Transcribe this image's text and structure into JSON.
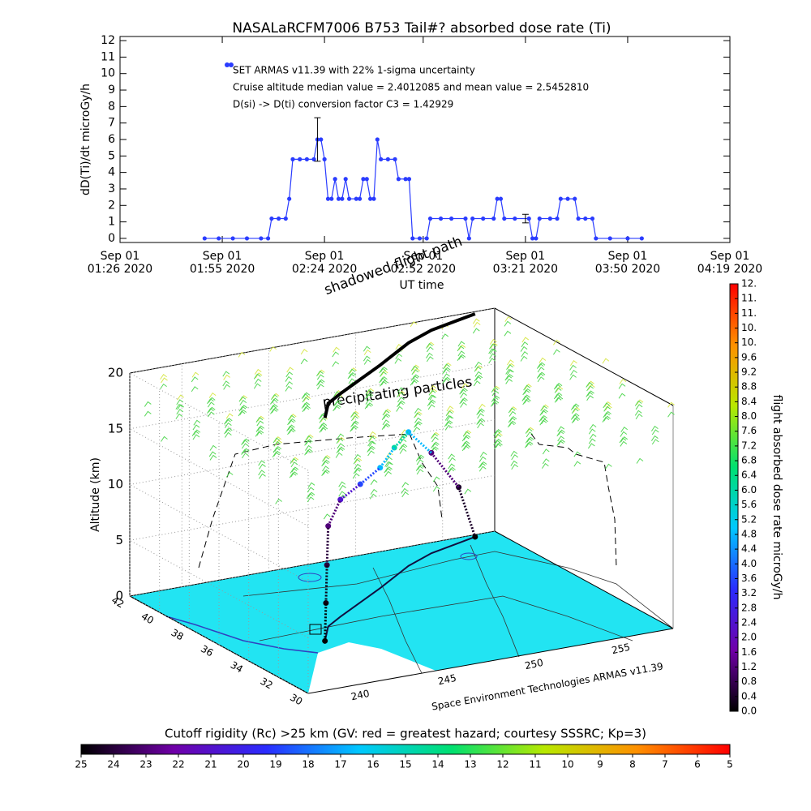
{
  "chart_data": [
    {
      "type": "line",
      "title": "NASALaRCFM7006  B753 Tail#? absorbed dose rate (Ti)",
      "x_label": "UT time",
      "y_label": "dD(Ti)/dt microGy/h",
      "x": [
        "2020-09-01 01:50",
        "2020-09-01 01:54",
        "2020-09-01 01:58",
        "2020-09-01 02:02",
        "2020-09-01 02:06",
        "2020-09-01 02:08",
        "2020-09-01 02:09",
        "2020-09-01 02:11",
        "2020-09-01 02:13",
        "2020-09-01 02:14",
        "2020-09-01 02:15",
        "2020-09-01 02:17",
        "2020-09-01 02:19",
        "2020-09-01 02:21",
        "2020-09-01 02:22",
        "2020-09-01 02:23",
        "2020-09-01 02:24",
        "2020-09-01 02:25",
        "2020-09-01 02:26",
        "2020-09-01 02:27",
        "2020-09-01 02:28",
        "2020-09-01 02:29",
        "2020-09-01 02:30",
        "2020-09-01 02:31",
        "2020-09-01 02:33",
        "2020-09-01 02:34",
        "2020-09-01 02:35",
        "2020-09-01 02:36",
        "2020-09-01 02:37",
        "2020-09-01 02:38",
        "2020-09-01 02:39",
        "2020-09-01 02:40",
        "2020-09-01 02:42",
        "2020-09-01 02:44",
        "2020-09-01 02:45",
        "2020-09-01 02:47",
        "2020-09-01 02:48",
        "2020-09-01 02:49",
        "2020-09-01 02:51",
        "2020-09-01 02:53",
        "2020-09-01 02:54",
        "2020-09-01 02:57",
        "2020-09-01 03:00",
        "2020-09-01 03:04",
        "2020-09-01 03:05",
        "2020-09-01 03:06",
        "2020-09-01 03:09",
        "2020-09-01 03:12",
        "2020-09-01 03:13",
        "2020-09-01 03:14",
        "2020-09-01 03:15",
        "2020-09-01 03:18",
        "2020-09-01 03:22",
        "2020-09-01 03:23",
        "2020-09-01 03:24",
        "2020-09-01 03:25",
        "2020-09-01 03:28",
        "2020-09-01 03:30",
        "2020-09-01 03:31",
        "2020-09-01 03:33",
        "2020-09-01 03:35",
        "2020-09-01 03:36",
        "2020-09-01 03:38",
        "2020-09-01 03:40",
        "2020-09-01 03:41",
        "2020-09-01 03:45",
        "2020-09-01 03:50",
        "2020-09-01 03:54"
      ],
      "series": [
        {
          "name": "SET ARMAS v11.39 with 22% 1-sigma uncertainty",
          "color": "#2a3cff",
          "values": [
            0,
            0,
            0,
            0,
            0,
            0,
            1.2,
            1.2,
            1.2,
            2.4,
            4.8,
            4.8,
            4.8,
            4.8,
            6.0,
            6.0,
            4.8,
            2.4,
            2.4,
            3.6,
            2.4,
            2.4,
            3.6,
            2.4,
            2.4,
            2.4,
            3.6,
            3.6,
            2.4,
            2.4,
            6.0,
            4.8,
            4.8,
            4.8,
            3.6,
            3.6,
            3.6,
            0,
            0,
            0,
            1.2,
            1.2,
            1.2,
            1.2,
            0,
            1.2,
            1.2,
            1.2,
            2.4,
            2.4,
            1.2,
            1.2,
            1.2,
            0,
            0,
            1.2,
            1.2,
            1.2,
            2.4,
            2.4,
            2.4,
            1.2,
            1.2,
            1.2,
            0,
            0,
            0,
            0
          ]
        }
      ],
      "error_bars": [
        {
          "x": "2020-09-01 02:22",
          "value": 6.0,
          "error": 1.32
        },
        {
          "x": "2020-09-01 03:21",
          "value": 1.2,
          "error": 0.26
        }
      ],
      "annotations": [
        "Cruise altitude median value = 2.4012085 and mean value = 2.5452810",
        "D(si) -> D(ti) conversion factor C3 = 1.42929"
      ],
      "xlim": [
        "2020-09-01 01:26",
        "2020-09-01 04:19"
      ],
      "xticks": [
        {
          "value": "2020-09-01 01:26",
          "label": [
            "Sep 01",
            "01:26 2020"
          ]
        },
        {
          "value": "2020-09-01 01:55",
          "label": [
            "Sep 01",
            "01:55 2020"
          ]
        },
        {
          "value": "2020-09-01 02:24",
          "label": [
            "Sep 01",
            "02:24 2020"
          ]
        },
        {
          "value": "2020-09-01 02:52",
          "label": [
            "Sep 01",
            "02:52 2020"
          ]
        },
        {
          "value": "2020-09-01 03:21",
          "label": [
            "Sep 01",
            "03:21 2020"
          ]
        },
        {
          "value": "2020-09-01 03:50",
          "label": [
            "Sep 01",
            "03:50 2020"
          ]
        },
        {
          "value": "2020-09-01 04:19",
          "label": [
            "Sep 01",
            "04:19 2020"
          ]
        }
      ],
      "ylim": [
        -0.25,
        12.25
      ],
      "yticks": [
        0,
        1,
        2,
        3,
        4,
        5,
        6,
        7,
        8,
        9,
        10,
        11,
        12
      ]
    },
    {
      "type": "scatter3d",
      "z_label": "Altitude (km)",
      "x": [
        241.9,
        242.3,
        242.7,
        243.2,
        244.5,
        246.5,
        248.5,
        250.0,
        251.5,
        253.5,
        255.5,
        256.7
      ],
      "y": [
        34.6,
        35.0,
        35.4,
        35.9,
        36.6,
        37.6,
        38.6,
        39.4,
        40.2,
        41.0,
        41.5,
        41.8
      ],
      "z": [
        0,
        3,
        6,
        9,
        10.5,
        10.6,
        10.8,
        11.6,
        12.0,
        9,
        5,
        0
      ],
      "values": [
        0,
        0.2,
        0.6,
        1.2,
        2.4,
        3.6,
        4.8,
        6.0,
        4.8,
        1.2,
        0.4,
        0
      ],
      "xlim": [
        237,
        258
      ],
      "ylim": [
        30,
        42
      ],
      "zlim": [
        0,
        20
      ],
      "xticks": [
        240,
        245,
        250,
        255
      ],
      "yticks": [
        42,
        40,
        38,
        36,
        34,
        32,
        30
      ],
      "zticks": [
        0,
        5,
        10,
        15,
        20
      ],
      "annotations": [
        "shadowed flight path",
        "precipitating particles",
        "Space Environment Technologies ARMAS v11.39"
      ]
    },
    {
      "type": "colorbar",
      "orientation": "vertical",
      "label": "flight absorbed dose rate microGy/h",
      "lim": [
        0,
        11.6
      ],
      "ticks": [
        {
          "value": 0,
          "label": "0.0"
        },
        0.4,
        0.8,
        1.2,
        1.6,
        {
          "value": 2,
          "label": "2.0"
        },
        2.4,
        2.8,
        3.2,
        3.6,
        {
          "value": 4,
          "label": "4.0"
        },
        4.4,
        4.8,
        5.2,
        5.6,
        {
          "value": 6,
          "label": "6.0"
        },
        6.4,
        6.8,
        7.2,
        7.6,
        {
          "value": 8,
          "label": "8.0"
        },
        8.4,
        8.8,
        9.2,
        9.6,
        {
          "value": 10,
          "label": "10."
        },
        {
          "value": 10.4,
          "label": "10."
        },
        {
          "value": 10.8,
          "label": "11."
        },
        {
          "value": 11.2,
          "label": "11."
        },
        {
          "value": 11.6,
          "label": "12."
        }
      ],
      "colors": [
        "#000000",
        "#7000a8",
        "#2a2cff",
        "#00c8ff",
        "#00e070",
        "#b8e800",
        "#ff9000",
        "#ff0000"
      ]
    },
    {
      "type": "colorbar",
      "orientation": "horizontal",
      "label": "Cutoff rigidity (Rc) >25 km (GV: red = greatest hazard; courtesy SSSRC; Kp=3)",
      "lim": [
        25,
        5
      ],
      "ticks": [
        25,
        24,
        23,
        22,
        21,
        20,
        19,
        18,
        17,
        16,
        15,
        14,
        13,
        12,
        11,
        10,
        9,
        8,
        7,
        6,
        5
      ],
      "colors": [
        "#000000",
        "#7000a8",
        "#2a2cff",
        "#00c8ff",
        "#00e070",
        "#b8e800",
        "#ff9000",
        "#ff0000"
      ]
    }
  ]
}
